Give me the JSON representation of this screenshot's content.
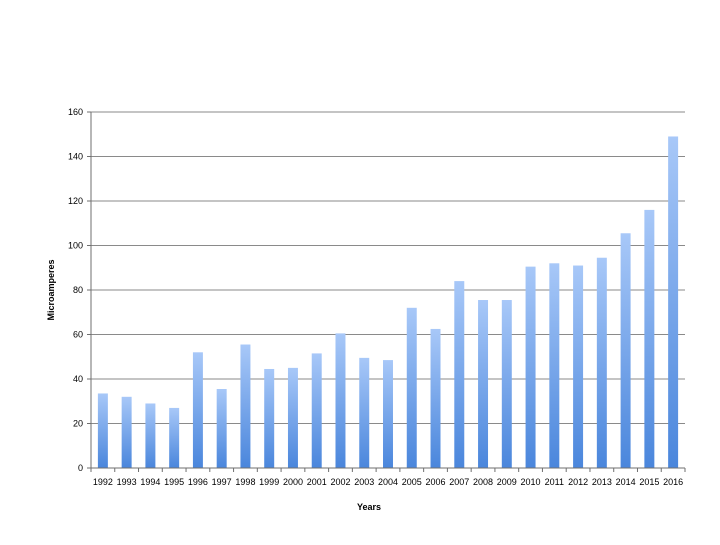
{
  "chart_data": {
    "type": "bar",
    "title": "",
    "xlabel": "Years",
    "ylabel": "Microamperes",
    "ylim": [
      0,
      160
    ],
    "yticks": [
      0,
      20,
      40,
      60,
      80,
      100,
      120,
      140,
      160
    ],
    "grid": true,
    "legend": "none",
    "categories": [
      "1992",
      "1993",
      "1994",
      "1995",
      "1996",
      "1997",
      "1998",
      "1999",
      "2000",
      "2001",
      "2002",
      "2003",
      "2004",
      "2005",
      "2006",
      "2007",
      "2008",
      "2009",
      "2010",
      "2011",
      "2012",
      "2013",
      "2014",
      "2015",
      "2016"
    ],
    "values": [
      33.5,
      32,
      29,
      27,
      52,
      35.5,
      55.5,
      44.5,
      45,
      51.5,
      60.5,
      49.5,
      48.5,
      72,
      62.5,
      84,
      75.5,
      75.5,
      90.5,
      92,
      91,
      94.5,
      105.5,
      116,
      149
    ],
    "colors": {
      "bar_top": "#a8c8f8",
      "bar_bottom": "#4a86dc",
      "grid": "#8a8a8a"
    }
  }
}
